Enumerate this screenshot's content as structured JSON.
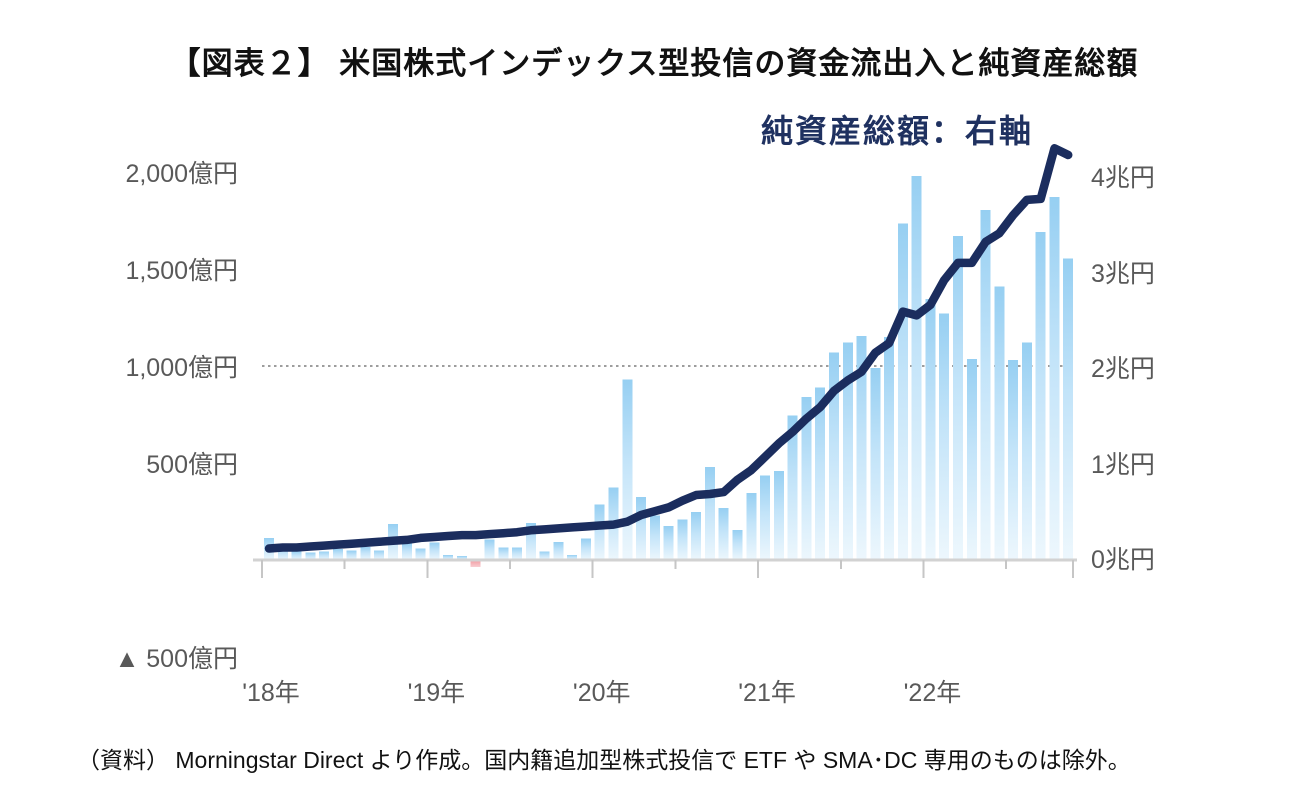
{
  "page": {
    "title": "【図表２】 米国株式インデックス型投信の資金流出入と純資産総額",
    "legend_annotation": "純資産総額：右軸",
    "source_note": "（資料） Morningstar Direct より作成。国内籍追加型株式投信で ETF や SMA･DC 専用のものは除外。"
  },
  "chart_data": {
    "type": "bar+line",
    "months": [
      "2018-01",
      "2018-02",
      "2018-03",
      "2018-04",
      "2018-05",
      "2018-06",
      "2018-07",
      "2018-08",
      "2018-09",
      "2018-10",
      "2018-11",
      "2018-12",
      "2019-01",
      "2019-02",
      "2019-03",
      "2019-04",
      "2019-05",
      "2019-06",
      "2019-07",
      "2019-08",
      "2019-09",
      "2019-10",
      "2019-11",
      "2019-12",
      "2020-01",
      "2020-02",
      "2020-03",
      "2020-04",
      "2020-05",
      "2020-06",
      "2020-07",
      "2020-08",
      "2020-09",
      "2020-10",
      "2020-11",
      "2020-12",
      "2021-01",
      "2021-02",
      "2021-03",
      "2021-04",
      "2021-05",
      "2021-06",
      "2021-07",
      "2021-08",
      "2021-09",
      "2021-10",
      "2021-11",
      "2021-12",
      "2022-01",
      "2022-02",
      "2022-03",
      "2022-04",
      "2022-05",
      "2022-06",
      "2022-07",
      "2022-08",
      "2022-09",
      "2022-10",
      "2022-11"
    ],
    "series": [
      {
        "name": "資金流出入",
        "type": "bar",
        "axis": "left",
        "unit": "億円",
        "values": [
          113,
          65,
          45,
          38,
          45,
          57,
          48,
          68,
          50,
          185,
          85,
          60,
          90,
          25,
          20,
          -35,
          105,
          65,
          65,
          190,
          45,
          92,
          26,
          110,
          285,
          375,
          930,
          325,
          230,
          175,
          210,
          247,
          480,
          268,
          155,
          345,
          435,
          460,
          745,
          840,
          890,
          1070,
          1120,
          1155,
          990,
          1150,
          1735,
          1980,
          1345,
          1270,
          1670,
          1035,
          1805,
          1410,
          1030,
          1120,
          1690,
          1870,
          1555
        ]
      },
      {
        "name": "純資産総額",
        "type": "line",
        "axis": "right",
        "unit": "兆円",
        "values": [
          0.1,
          0.11,
          0.11,
          0.12,
          0.13,
          0.14,
          0.15,
          0.16,
          0.17,
          0.18,
          0.19,
          0.21,
          0.22,
          0.23,
          0.24,
          0.24,
          0.25,
          0.26,
          0.27,
          0.29,
          0.3,
          0.31,
          0.32,
          0.33,
          0.34,
          0.35,
          0.38,
          0.45,
          0.49,
          0.53,
          0.6,
          0.66,
          0.67,
          0.69,
          0.82,
          0.92,
          1.06,
          1.2,
          1.32,
          1.46,
          1.58,
          1.75,
          1.86,
          1.95,
          2.15,
          2.25,
          2.58,
          2.54,
          2.65,
          2.91,
          3.09,
          3.09,
          3.31,
          3.4,
          3.59,
          3.75,
          3.76,
          4.29,
          4.22
        ]
      }
    ],
    "left_axis": {
      "unit": "億円",
      "ticks": [
        {
          "label": "2,000億円",
          "value": 2000
        },
        {
          "label": "1,500億円",
          "value": 1500
        },
        {
          "label": "1,000億円",
          "value": 1000
        },
        {
          "label": "500億円",
          "value": 500
        },
        {
          "label": "▲ 500億円",
          "value": -500
        }
      ]
    },
    "right_axis": {
      "unit": "兆円",
      "ticks": [
        {
          "label": "4兆円",
          "value": 4
        },
        {
          "label": "3兆円",
          "value": 3
        },
        {
          "label": "2兆円",
          "value": 2
        },
        {
          "label": "1兆円",
          "value": 1
        },
        {
          "label": "0兆円",
          "value": 0
        }
      ]
    },
    "x_axis": {
      "year_labels": [
        "'18年",
        "'19年",
        "'20年",
        "'21年",
        "'22年"
      ]
    },
    "gridline_value": 1000,
    "legend_position": "top-right",
    "colors": {
      "bar_top": "#96cff2",
      "bar_mid": "#c3e4f9",
      "bar_bottom": "#edf7fd",
      "bar_negative_top": "#f29aa1",
      "bar_negative_bottom": "#f8ccd0",
      "line": "#1b2d5e",
      "annotation": "#1f3160",
      "axis_text": "#595959",
      "gridline": "#9d9d9d",
      "axis_line": "#d2d2d2"
    }
  }
}
